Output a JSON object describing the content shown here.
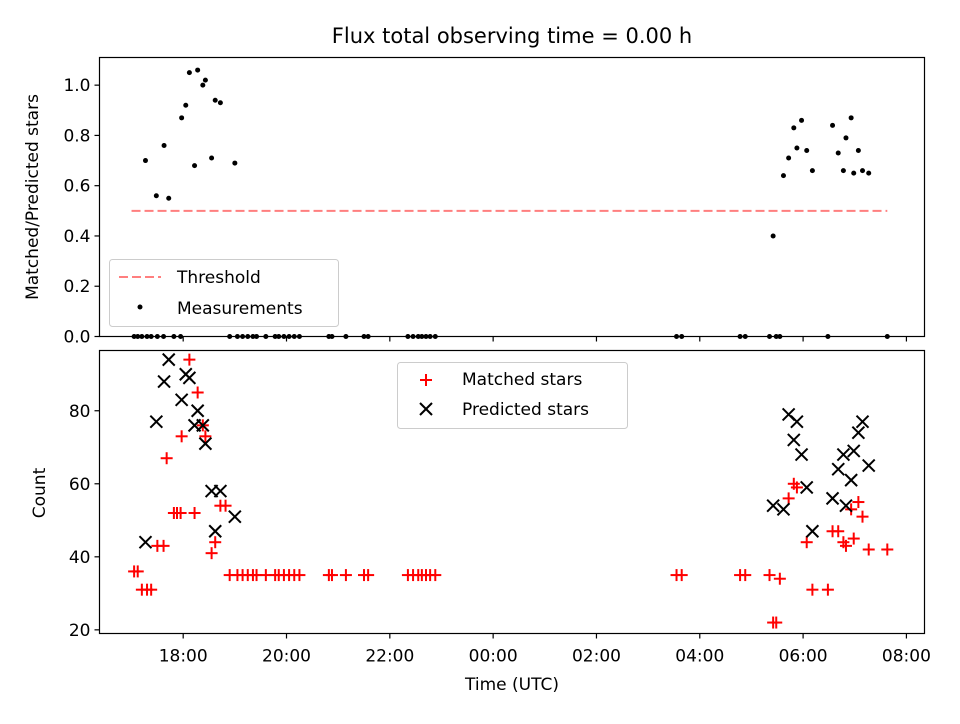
{
  "chart_data": [
    {
      "type": "scatter",
      "title": "Flux total observing time = 0.00 h",
      "ylabel": "Matched/Predicted stars",
      "xlabel": "",
      "x_unit": "hours (UTC, continuing past midnight)",
      "xlim": [
        16.38,
        32.35
      ],
      "ylim": [
        0,
        1.11
      ],
      "yticks": [
        0,
        0.2,
        0.4,
        0.6,
        0.8,
        1.0
      ],
      "ytick_labels": [
        "0.0",
        "0.2",
        "0.4",
        "0.6",
        "0.8",
        "1.0"
      ],
      "grid": false,
      "legend": "lower-left",
      "threshold": {
        "name": "Threshold",
        "value": 0.5,
        "x_range": [
          17.0,
          31.63
        ],
        "color": "#ff7f7f",
        "style": "dashed"
      },
      "series": [
        {
          "name": "Measurements",
          "color": "#000000",
          "marker": "dot",
          "points": [
            [
              17.27,
              0.7
            ],
            [
              17.48,
              0.56
            ],
            [
              17.63,
              0.76
            ],
            [
              17.72,
              0.55
            ],
            [
              17.97,
              0.87
            ],
            [
              18.05,
              0.92
            ],
            [
              18.12,
              1.05
            ],
            [
              18.22,
              0.68
            ],
            [
              18.28,
              1.06
            ],
            [
              18.38,
              1.0
            ],
            [
              18.43,
              1.02
            ],
            [
              18.55,
              0.71
            ],
            [
              18.62,
              0.94
            ],
            [
              18.72,
              0.93
            ],
            [
              19.0,
              0.69
            ],
            [
              29.42,
              0.4
            ],
            [
              29.62,
              0.64
            ],
            [
              29.72,
              0.71
            ],
            [
              29.82,
              0.83
            ],
            [
              29.88,
              0.75
            ],
            [
              29.97,
              0.86
            ],
            [
              30.07,
              0.74
            ],
            [
              30.18,
              0.66
            ],
            [
              30.57,
              0.84
            ],
            [
              30.68,
              0.73
            ],
            [
              30.78,
              0.66
            ],
            [
              30.83,
              0.79
            ],
            [
              30.93,
              0.87
            ],
            [
              30.98,
              0.65
            ],
            [
              31.07,
              0.74
            ],
            [
              31.15,
              0.66
            ],
            [
              31.27,
              0.65
            ],
            [
              17.05,
              0.0
            ],
            [
              17.12,
              0.0
            ],
            [
              17.2,
              0.0
            ],
            [
              17.3,
              0.0
            ],
            [
              17.38,
              0.0
            ],
            [
              17.5,
              0.0
            ],
            [
              17.62,
              0.0
            ],
            [
              17.82,
              0.0
            ],
            [
              17.95,
              0.0
            ],
            [
              18.9,
              0.0
            ],
            [
              19.05,
              0.0
            ],
            [
              19.15,
              0.0
            ],
            [
              19.25,
              0.0
            ],
            [
              19.35,
              0.0
            ],
            [
              19.42,
              0.0
            ],
            [
              19.6,
              0.0
            ],
            [
              19.78,
              0.0
            ],
            [
              19.85,
              0.0
            ],
            [
              19.95,
              0.0
            ],
            [
              20.05,
              0.0
            ],
            [
              20.15,
              0.0
            ],
            [
              20.25,
              0.0
            ],
            [
              20.82,
              0.0
            ],
            [
              20.88,
              0.0
            ],
            [
              21.15,
              0.0
            ],
            [
              21.5,
              0.0
            ],
            [
              21.58,
              0.0
            ],
            [
              22.35,
              0.0
            ],
            [
              22.45,
              0.0
            ],
            [
              22.55,
              0.0
            ],
            [
              22.62,
              0.0
            ],
            [
              22.7,
              0.0
            ],
            [
              22.78,
              0.0
            ],
            [
              22.88,
              0.0
            ],
            [
              27.55,
              0.0
            ],
            [
              27.65,
              0.0
            ],
            [
              28.78,
              0.0
            ],
            [
              28.88,
              0.0
            ],
            [
              29.35,
              0.0
            ],
            [
              29.48,
              0.0
            ],
            [
              29.55,
              0.0
            ],
            [
              30.48,
              0.0
            ],
            [
              31.63,
              0.0
            ]
          ]
        }
      ]
    },
    {
      "type": "scatter",
      "title": "",
      "xlabel": "Time (UTC)",
      "ylabel": "Count",
      "x_unit": "hours (UTC, continuing past midnight)",
      "xlim": [
        16.38,
        32.35
      ],
      "ylim": [
        19,
        96.5
      ],
      "xticks": [
        18,
        20,
        22,
        24,
        26,
        28,
        30,
        32
      ],
      "xtick_labels": [
        "18:00",
        "20:00",
        "22:00",
        "00:00",
        "02:00",
        "04:00",
        "06:00",
        "08:00"
      ],
      "yticks": [
        20,
        40,
        60,
        80
      ],
      "ytick_labels": [
        "20",
        "40",
        "60",
        "80"
      ],
      "grid": false,
      "legend": "upper-center",
      "series": [
        {
          "name": "Matched stars",
          "color": "#ff0000",
          "marker": "plus",
          "points": [
            [
              17.05,
              36
            ],
            [
              17.12,
              36
            ],
            [
              17.2,
              31
            ],
            [
              17.3,
              31
            ],
            [
              17.38,
              31
            ],
            [
              17.5,
              43
            ],
            [
              17.62,
              43
            ],
            [
              17.68,
              67
            ],
            [
              17.82,
              52
            ],
            [
              17.88,
              52
            ],
            [
              17.95,
              52
            ],
            [
              17.97,
              73
            ],
            [
              18.12,
              94
            ],
            [
              18.22,
              52
            ],
            [
              18.28,
              85
            ],
            [
              18.38,
              76
            ],
            [
              18.43,
              73
            ],
            [
              18.55,
              41
            ],
            [
              18.62,
              44
            ],
            [
              18.72,
              54
            ],
            [
              18.82,
              54
            ],
            [
              18.9,
              35
            ],
            [
              19.05,
              35
            ],
            [
              19.15,
              35
            ],
            [
              19.25,
              35
            ],
            [
              19.35,
              35
            ],
            [
              19.42,
              35
            ],
            [
              19.6,
              35
            ],
            [
              19.78,
              35
            ],
            [
              19.85,
              35
            ],
            [
              19.95,
              35
            ],
            [
              20.05,
              35
            ],
            [
              20.15,
              35
            ],
            [
              20.25,
              35
            ],
            [
              20.82,
              35
            ],
            [
              20.88,
              35
            ],
            [
              21.15,
              35
            ],
            [
              21.5,
              35
            ],
            [
              21.58,
              35
            ],
            [
              22.35,
              35
            ],
            [
              22.45,
              35
            ],
            [
              22.55,
              35
            ],
            [
              22.62,
              35
            ],
            [
              22.7,
              35
            ],
            [
              22.78,
              35
            ],
            [
              22.88,
              35
            ],
            [
              27.55,
              35
            ],
            [
              27.65,
              35
            ],
            [
              28.78,
              35
            ],
            [
              28.88,
              35
            ],
            [
              29.35,
              35
            ],
            [
              29.42,
              22
            ],
            [
              29.48,
              22
            ],
            [
              29.55,
              34
            ],
            [
              29.72,
              56
            ],
            [
              29.82,
              60
            ],
            [
              29.88,
              59
            ],
            [
              30.07,
              44
            ],
            [
              30.18,
              31
            ],
            [
              30.48,
              31
            ],
            [
              30.57,
              47
            ],
            [
              30.68,
              47
            ],
            [
              30.78,
              44
            ],
            [
              30.83,
              43
            ],
            [
              30.93,
              53
            ],
            [
              30.98,
              45
            ],
            [
              31.07,
              55
            ],
            [
              31.15,
              51
            ],
            [
              31.27,
              42
            ],
            [
              31.63,
              42
            ]
          ]
        },
        {
          "name": "Predicted stars",
          "color": "#000000",
          "marker": "x",
          "points": [
            [
              17.27,
              44
            ],
            [
              17.48,
              77
            ],
            [
              17.63,
              88
            ],
            [
              17.72,
              94
            ],
            [
              17.97,
              83
            ],
            [
              18.05,
              90
            ],
            [
              18.12,
              89
            ],
            [
              18.22,
              76
            ],
            [
              18.28,
              80
            ],
            [
              18.38,
              76
            ],
            [
              18.43,
              71
            ],
            [
              18.55,
              58
            ],
            [
              18.62,
              47
            ],
            [
              18.72,
              58
            ],
            [
              19.0,
              51
            ],
            [
              29.42,
              54
            ],
            [
              29.62,
              53
            ],
            [
              29.72,
              79
            ],
            [
              29.82,
              72
            ],
            [
              29.88,
              77
            ],
            [
              29.97,
              68
            ],
            [
              30.07,
              59
            ],
            [
              30.18,
              47
            ],
            [
              30.57,
              56
            ],
            [
              30.68,
              64
            ],
            [
              30.78,
              68
            ],
            [
              30.83,
              54
            ],
            [
              30.93,
              61
            ],
            [
              30.98,
              69
            ],
            [
              31.07,
              74
            ],
            [
              31.15,
              77
            ],
            [
              31.27,
              65
            ]
          ]
        }
      ]
    }
  ]
}
